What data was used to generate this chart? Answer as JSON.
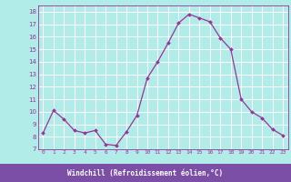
{
  "xlabel": "Windchill (Refroidissement éolien,°C)",
  "hours": [
    0,
    1,
    2,
    3,
    4,
    5,
    6,
    7,
    8,
    9,
    10,
    11,
    12,
    13,
    14,
    15,
    16,
    17,
    18,
    19,
    20,
    21,
    22,
    23
  ],
  "values": [
    8.3,
    10.1,
    9.4,
    8.5,
    8.3,
    8.5,
    7.4,
    7.3,
    8.4,
    9.7,
    12.7,
    14.0,
    15.5,
    17.1,
    17.8,
    17.5,
    17.2,
    15.9,
    15.0,
    11.0,
    10.0,
    9.5,
    8.6,
    8.1
  ],
  "line_color": "#993399",
  "marker": "D",
  "marker_size": 2.0,
  "bg_color": "#b2ece8",
  "grid_color": "#ffffff",
  "ylim": [
    7,
    18.5
  ],
  "yticks": [
    7,
    8,
    9,
    10,
    11,
    12,
    13,
    14,
    15,
    16,
    17,
    18
  ],
  "xticks": [
    0,
    1,
    2,
    3,
    4,
    5,
    6,
    7,
    8,
    9,
    10,
    11,
    12,
    13,
    14,
    15,
    16,
    17,
    18,
    19,
    20,
    21,
    22,
    23
  ],
  "tick_color": "#993399",
  "label_color": "#993399",
  "xlabel_bg": "#7b4fa6",
  "xlabel_text_color": "#ffffff",
  "axis_bg": "#b2ece8"
}
